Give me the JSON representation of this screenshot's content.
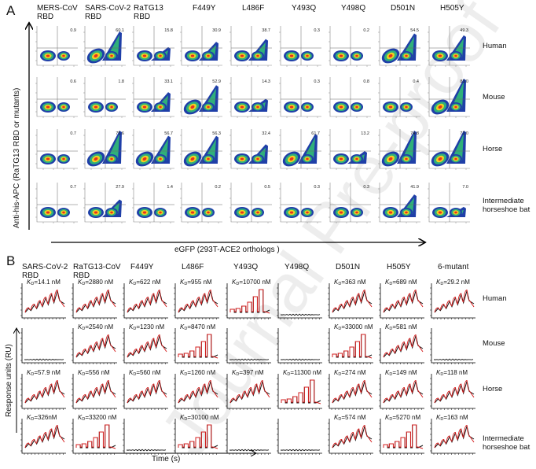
{
  "panel_a": {
    "letter": "A",
    "y_axis_label": "Anti-his-APC (RaTG13 RBD or mutants)",
    "x_axis_label": "eGFP (293T-ACE2 orthologs )",
    "columns": [
      [
        "MERS-CoV",
        "RBD"
      ],
      [
        "SARS-CoV-2",
        "RBD"
      ],
      [
        "RaTG13",
        "RBD"
      ],
      [
        "F449Y",
        ""
      ],
      [
        "L486F",
        ""
      ],
      [
        "Y493Q",
        ""
      ],
      [
        "Y498Q",
        ""
      ],
      [
        "D501N",
        ""
      ],
      [
        "H505Y",
        ""
      ]
    ],
    "rows": [
      {
        "label": [
          "Human",
          ""
        ],
        "values": [
          "0.9",
          "60.1",
          "15.8",
          "30.9",
          "38.7",
          "0.3",
          "0.2",
          "54.5",
          "49.3"
        ]
      },
      {
        "label": [
          "Mouse",
          ""
        ],
        "values": [
          "0.6",
          "1.8",
          "33.1",
          "52.9",
          "14.3",
          "0.3",
          "0.8",
          "0.4",
          "83.0"
        ]
      },
      {
        "label": [
          "Horse",
          ""
        ],
        "values": [
          "0.7",
          "75.6",
          "56.7",
          "56.3",
          "32.4",
          "61.7",
          "13.2",
          "74.8",
          "72.0"
        ]
      },
      {
        "label": [
          "Intermediate",
          "horseshoe bat"
        ],
        "values": [
          "0.7",
          "27.9",
          "1.4",
          "0.2",
          "0.5",
          "0.3",
          "0.3",
          "41.9",
          "7.0"
        ]
      }
    ]
  },
  "panel_b": {
    "letter": "B",
    "y_axis_label": "Response units (RU)",
    "x_axis_label": "Time (s)",
    "kd_symbol": "K",
    "kd_sub": "D",
    "columns": [
      [
        "SARS-CoV-2",
        "RBD"
      ],
      [
        "RaTG13-CoV",
        "RBD"
      ],
      [
        "F449Y",
        ""
      ],
      [
        "L486F",
        ""
      ],
      [
        "Y493Q",
        ""
      ],
      [
        "Y498Q",
        ""
      ],
      [
        "D501N",
        ""
      ],
      [
        "H505Y",
        ""
      ],
      [
        "6-mutant",
        ""
      ]
    ],
    "rows": [
      {
        "label": [
          "Human",
          ""
        ],
        "kd": [
          "=14.1 nM",
          "=2880 nM",
          "=622 nM",
          "=955 nM",
          "=10700 nM",
          null,
          "=363 nM",
          "=689 nM",
          "=29.2 nM"
        ]
      },
      {
        "label": [
          "Mouse",
          ""
        ],
        "kd": [
          null,
          "=2540 nM",
          "=1230 nM",
          "=8470 nM",
          null,
          null,
          "=33000 nM",
          "=581 nM",
          null
        ]
      },
      {
        "label": [
          "Horse",
          ""
        ],
        "kd": [
          "=57.9 nM",
          "=556 nM",
          "=560 nM",
          "=1260 nM",
          "=397 nM",
          "=11300 nM",
          "=274 nM",
          "=149 nM",
          "=118 nM"
        ]
      },
      {
        "label": [
          "Intermediate",
          "horseshoe bat"
        ],
        "kd": [
          "=326nM",
          "=33200 nM",
          null,
          "=30100 nM",
          null,
          null,
          "=574 nM",
          "=5270 nM",
          "=163 nM"
        ]
      }
    ]
  },
  "watermark": "Journal Pre-proof",
  "colors": {
    "fit": "#d62020",
    "data": "#111111",
    "flow_low": "#1f3fa8",
    "flow_mid": "#2fb07a",
    "flow_high": "#f0d020",
    "flow_peak": "#e8301e"
  }
}
